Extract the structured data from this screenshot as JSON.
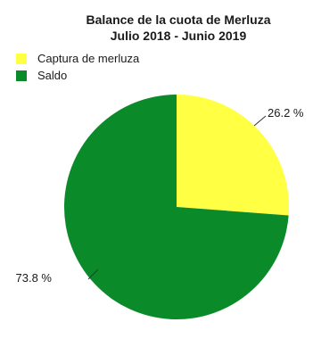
{
  "chart_data": {
    "type": "pie",
    "title": "Balance de la cuota de Merluza",
    "subtitle": "Julio 2018 - Junio 2019",
    "legend_position": "top-left",
    "slices": [
      {
        "name": "Captura de merluza",
        "value": 26.2,
        "label": "26.2 %",
        "color": "#ffff44"
      },
      {
        "name": "Saldo",
        "value": 73.8,
        "label": "73.8 %",
        "color": "#0b8a2a"
      }
    ]
  }
}
